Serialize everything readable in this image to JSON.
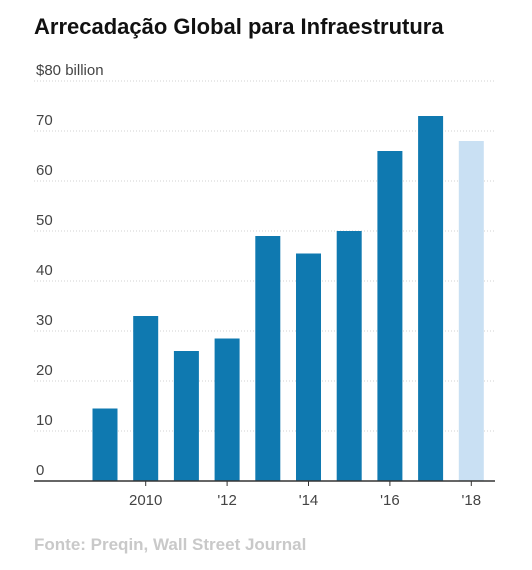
{
  "title": "Arrecadação Global para Infraestrutura",
  "source": "Fonte: Preqin, Wall Street Journal",
  "colors": {
    "bar": "#0f79b0",
    "bar_estimate": "#c9e0f3",
    "gridline": "#d2d2d2",
    "axis": "#333333"
  },
  "chart_data": {
    "type": "bar",
    "title": "Arrecadação Global para Infraestrutura",
    "ylabel": "",
    "xlabel": "",
    "ylim": [
      0,
      80
    ],
    "yticks": [
      {
        "value": 80,
        "label": "$80 billion"
      },
      {
        "value": 70,
        "label": "70"
      },
      {
        "value": 60,
        "label": "60"
      },
      {
        "value": 50,
        "label": "50"
      },
      {
        "value": 40,
        "label": "40"
      },
      {
        "value": 30,
        "label": "30"
      },
      {
        "value": 20,
        "label": "20"
      },
      {
        "value": 10,
        "label": "10"
      },
      {
        "value": 0,
        "label": "0"
      }
    ],
    "categories": [
      "2009",
      "2010",
      "2011",
      "2012",
      "2013",
      "2014",
      "2015",
      "2016",
      "2017",
      "2018"
    ],
    "xtick_labels": [
      "",
      "2010",
      "",
      "'12",
      "",
      "'14",
      "",
      "'16",
      "",
      "'18"
    ],
    "values": [
      14.5,
      33,
      26,
      28.5,
      49,
      45.5,
      50,
      66,
      73,
      68
    ],
    "highlight": [
      false,
      false,
      false,
      false,
      false,
      false,
      false,
      false,
      false,
      true
    ],
    "grid": true
  }
}
